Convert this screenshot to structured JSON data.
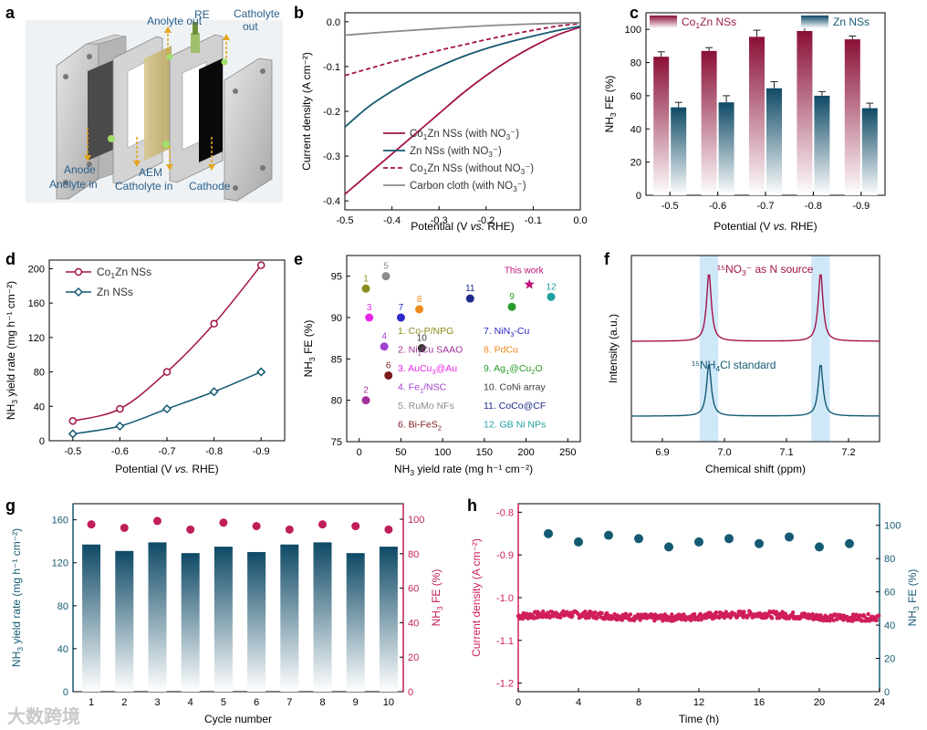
{
  "panel_labels": [
    "a",
    "b",
    "c",
    "d",
    "e",
    "f",
    "g",
    "h"
  ],
  "watermark": "大数跨境",
  "panel_a": {
    "labels": {
      "anolyte_out": "Anolyte out",
      "re": "RE",
      "catholyte_out": "Catholyte out",
      "anode": "Anode",
      "anolyte_in": "Anolyte in",
      "aem": "AEM",
      "catholyte_in": "Catholyte in",
      "cathode": "Cathode"
    }
  },
  "chart_data": [
    {
      "panel": "b",
      "type": "line",
      "xlabel": "Potential (V vs. RHE)",
      "ylabel": "Current density (A cm⁻²)",
      "xlim": [
        -0.5,
        0.0
      ],
      "ylim": [
        -0.42,
        0.02
      ],
      "xticks": [
        -0.5,
        -0.4,
        -0.3,
        -0.2,
        -0.1,
        0.0
      ],
      "yticks": [
        0.0,
        -0.1,
        -0.2,
        -0.3,
        -0.4
      ],
      "series": [
        {
          "name": "Co1Zn NSs (with NO3-)",
          "color": "#a3134a",
          "dash": false,
          "x": [
            -0.5,
            -0.45,
            -0.4,
            -0.35,
            -0.3,
            -0.25,
            -0.2,
            -0.15,
            -0.1,
            -0.05,
            0.0
          ],
          "y": [
            -0.385,
            -0.34,
            -0.295,
            -0.25,
            -0.205,
            -0.16,
            -0.12,
            -0.085,
            -0.055,
            -0.03,
            -0.012
          ]
        },
        {
          "name": "Zn NSs (with NO3-)",
          "color": "#155a73",
          "dash": false,
          "x": [
            -0.5,
            -0.45,
            -0.4,
            -0.35,
            -0.3,
            -0.25,
            -0.2,
            -0.15,
            -0.1,
            -0.05,
            0.0
          ],
          "y": [
            -0.235,
            -0.19,
            -0.155,
            -0.125,
            -0.1,
            -0.078,
            -0.06,
            -0.045,
            -0.032,
            -0.02,
            -0.01
          ]
        },
        {
          "name": "Co1Zn NSs (without NO3-)",
          "color": "#a3134a",
          "dash": true,
          "x": [
            -0.5,
            -0.45,
            -0.4,
            -0.35,
            -0.3,
            -0.25,
            -0.2,
            -0.15,
            -0.1,
            -0.05,
            0.0
          ],
          "y": [
            -0.12,
            -0.105,
            -0.09,
            -0.077,
            -0.064,
            -0.052,
            -0.04,
            -0.029,
            -0.019,
            -0.01,
            -0.004
          ]
        },
        {
          "name": "Carbon cloth (with NO3-)",
          "color": "#8a8a8a",
          "dash": false,
          "x": [
            -0.5,
            -0.4,
            -0.3,
            -0.2,
            -0.1,
            0.0
          ],
          "y": [
            -0.03,
            -0.022,
            -0.015,
            -0.009,
            -0.005,
            -0.002
          ]
        }
      ]
    },
    {
      "panel": "c",
      "type": "bar",
      "xlabel": "Potential (V vs. RHE)",
      "ylabel": "NH3 FE (%)",
      "ylim": [
        0,
        110
      ],
      "yticks": [
        0,
        20,
        40,
        60,
        80,
        100
      ],
      "categories": [
        "-0.5",
        "-0.6",
        "-0.7",
        "-0.8",
        "-0.9"
      ],
      "series": [
        {
          "name": "Co1Zn NSs",
          "color": "#9c1a45",
          "values": [
            83.5,
            87,
            95.5,
            99,
            94
          ],
          "errors": [
            3,
            2,
            4,
            3,
            2
          ]
        },
        {
          "name": "Zn NSs",
          "color": "#155a73",
          "values": [
            53,
            56,
            64.5,
            60,
            52.5
          ],
          "errors": [
            3,
            4,
            4,
            2.5,
            3
          ]
        }
      ]
    },
    {
      "panel": "d",
      "type": "line",
      "xlabel": "Potential (V vs. RHE)",
      "ylabel": "NH3 yield rate (mg h⁻¹ cm⁻²)",
      "xlim": [
        -0.45,
        -0.95
      ],
      "ylim": [
        0,
        210
      ],
      "xticks": [
        "-0.5",
        "-0.6",
        "-0.7",
        "-0.8",
        "-0.9"
      ],
      "yticks": [
        0,
        40,
        80,
        120,
        160,
        200
      ],
      "series": [
        {
          "name": "Co1Zn NSs",
          "color": "#a3134a",
          "marker": "circle",
          "x": [
            -0.5,
            -0.6,
            -0.7,
            -0.8,
            -0.9
          ],
          "y": [
            23,
            37,
            80,
            136,
            204
          ]
        },
        {
          "name": "Zn NSs",
          "color": "#155a73",
          "marker": "diamond",
          "x": [
            -0.5,
            -0.6,
            -0.7,
            -0.8,
            -0.9
          ],
          "y": [
            8,
            17,
            37,
            57,
            80
          ]
        }
      ]
    },
    {
      "panel": "e",
      "type": "scatter",
      "xlabel": "NH3 yield rate (mg h⁻¹ cm⁻²)",
      "ylabel": "NH3 FE (%)",
      "xlim": [
        -15,
        265
      ],
      "ylim": [
        75,
        97.5
      ],
      "xticks": [
        0,
        50,
        100,
        150,
        200,
        250
      ],
      "yticks": [
        75,
        80,
        85,
        90,
        95
      ],
      "points": [
        {
          "id": "1",
          "legend": "1. Co-P/NPG",
          "x": 8,
          "y": 93.5,
          "color": "#8c8c1e"
        },
        {
          "id": "2",
          "legend": "2. Ni1Cu SAAO",
          "x": 8,
          "y": 80,
          "color": "#a12f9a"
        },
        {
          "id": "3",
          "legend": "3. AuCu3@Au",
          "x": 12,
          "y": 90,
          "color": "#e626e6"
        },
        {
          "id": "4",
          "legend": "4. Fe1/NSC",
          "x": 30,
          "y": 86.5,
          "color": "#a040d0"
        },
        {
          "id": "5",
          "legend": "5. RuMo NFs",
          "x": 32,
          "y": 95,
          "color": "#8c8c8c"
        },
        {
          "id": "6",
          "legend": "6. Bi-FeS2",
          "x": 35,
          "y": 83,
          "color": "#7a1a1a"
        },
        {
          "id": "7",
          "legend": "7. NiN3-Cu",
          "x": 50,
          "y": 90,
          "color": "#2a2ac8"
        },
        {
          "id": "8",
          "legend": "8. PdCu",
          "x": 72,
          "y": 91,
          "color": "#f08a1e"
        },
        {
          "id": "9",
          "legend": "9. Ag1@Cu2O",
          "x": 183,
          "y": 91.3,
          "color": "#2a9a2a"
        },
        {
          "id": "10",
          "legend": "10. CoNi array",
          "x": 75,
          "y": 86.3,
          "color": "#3a3a3a"
        },
        {
          "id": "11",
          "legend": "11. CoCo@CF",
          "x": 133,
          "y": 92.3,
          "color": "#1c2a8c"
        },
        {
          "id": "12",
          "legend": "12. GB Ni NPs",
          "x": 230,
          "y": 92.5,
          "color": "#20a0a0"
        }
      ],
      "this_work": {
        "label": "This work",
        "x": 204,
        "y": 94,
        "color": "#c0147a"
      }
    },
    {
      "panel": "f",
      "type": "line",
      "xlabel": "Chemical shift (ppm)",
      "ylabel": "Intensity (a.u.)",
      "xlim": [
        7.25,
        6.85
      ],
      "xticks": [
        "6.9",
        "7.0",
        "7.1",
        "7.2"
      ],
      "peaks_ppm": [
        6.975,
        7.155
      ],
      "highlight_bands": [
        [
          6.96,
          6.99
        ],
        [
          7.14,
          7.17
        ]
      ],
      "series": [
        {
          "name": "15NO3- as N source",
          "color": "#a3134a"
        },
        {
          "name": "15NH4Cl standard",
          "color": "#155a73"
        }
      ]
    },
    {
      "panel": "g",
      "type": "bar",
      "xlabel": "Cycle number",
      "ylabel": "NH3 yield rate (mg h⁻¹ cm⁻²)",
      "ylabel_right": "NH3 FE (%)",
      "ylim": [
        0,
        175
      ],
      "ylim_right": [
        0,
        109
      ],
      "yticks": [
        0,
        40,
        80,
        120,
        160
      ],
      "yticks_right": [
        0,
        20,
        40,
        60,
        80,
        100
      ],
      "categories": [
        "1",
        "2",
        "3",
        "4",
        "5",
        "6",
        "7",
        "8",
        "9",
        "10"
      ],
      "series": [
        {
          "name": "NH3 yield rate",
          "color": "#155a73",
          "values": [
            137,
            131,
            139,
            129,
            135,
            130,
            137,
            139,
            129,
            135
          ]
        },
        {
          "name": "NH3 FE",
          "color": "#c01e5a",
          "values": [
            97,
            95,
            99,
            94,
            98,
            96,
            94,
            97,
            96,
            94
          ]
        }
      ]
    },
    {
      "panel": "h",
      "type": "scatter",
      "xlabel": "Time (h)",
      "ylabel": "Current density (A cm⁻²)",
      "ylabel_right": "NH3 FE (%)",
      "xlim": [
        0,
        24
      ],
      "ylim": [
        -1.22,
        -0.78
      ],
      "ylim_right": [
        0,
        113
      ],
      "xticks": [
        0,
        4,
        8,
        12,
        16,
        20,
        24
      ],
      "yticks": [
        -0.8,
        -0.9,
        -1.0,
        -1.1,
        -1.2
      ],
      "yticks_right": [
        0,
        20,
        40,
        60,
        80,
        100
      ],
      "current_series": {
        "color": "#d01e5a",
        "mean": -1.043,
        "jitter": 0.008
      },
      "fe_series": {
        "color": "#155a73",
        "x": [
          2,
          4,
          6,
          8,
          10,
          12,
          14,
          16,
          18,
          20,
          22
        ],
        "y": [
          95,
          90,
          94,
          92,
          87,
          90,
          92,
          89,
          93,
          87,
          89
        ]
      }
    }
  ],
  "legend_text": {
    "b": [
      [
        "Co",
        "1",
        "Zn NSs (with NO",
        "3",
        "⁻)"
      ],
      [
        "Zn NSs (with NO",
        "3",
        "⁻)"
      ],
      [
        "Co",
        "1",
        "Zn NSs (without NO",
        "3",
        "⁻)"
      ],
      [
        "Carbon cloth (with NO",
        "3",
        "⁻)"
      ]
    ],
    "c": [
      [
        "Co",
        "1",
        "Zn NSs"
      ],
      [
        "Zn NSs"
      ]
    ],
    "d": [
      [
        "Co",
        "1",
        "Zn NSs"
      ],
      [
        "Zn NSs"
      ]
    ],
    "f": [
      [
        "¹⁵NO",
        "3",
        "⁻ as N source"
      ],
      [
        "¹⁵NH",
        "4",
        "Cl standard"
      ]
    ]
  }
}
